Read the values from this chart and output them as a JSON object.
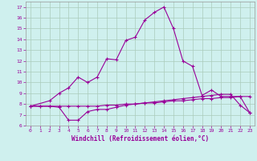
{
  "xlabel": "Windchill (Refroidissement éolien,°C)",
  "background_color": "#cff0ee",
  "line_color": "#990099",
  "grid_color": "#aaccbb",
  "xlim": [
    -0.5,
    23.5
  ],
  "ylim": [
    6,
    17.5
  ],
  "yticks": [
    6,
    7,
    8,
    9,
    10,
    11,
    12,
    13,
    14,
    15,
    16,
    17
  ],
  "xticks": [
    0,
    1,
    2,
    3,
    4,
    5,
    6,
    7,
    8,
    9,
    10,
    11,
    12,
    13,
    14,
    15,
    16,
    17,
    18,
    19,
    20,
    21,
    22,
    23
  ],
  "series1_x": [
    0,
    1,
    2,
    3,
    4,
    5,
    6,
    7,
    8,
    9,
    10,
    11,
    12,
    13,
    14,
    15,
    16,
    17,
    18,
    19,
    20,
    21,
    22,
    23
  ],
  "series1_y": [
    7.8,
    7.8,
    7.8,
    7.8,
    7.8,
    7.8,
    7.8,
    7.8,
    7.9,
    7.9,
    8.0,
    8.0,
    8.1,
    8.1,
    8.2,
    8.3,
    8.3,
    8.4,
    8.5,
    8.5,
    8.6,
    8.6,
    8.7,
    8.7
  ],
  "series2_x": [
    0,
    1,
    2,
    3,
    4,
    5,
    6,
    7,
    8,
    9,
    10,
    11,
    12,
    13,
    14,
    15,
    16,
    17,
    18,
    19,
    20,
    21,
    22,
    23
  ],
  "series2_y": [
    7.8,
    7.8,
    7.8,
    7.7,
    6.5,
    6.5,
    7.3,
    7.5,
    7.5,
    7.7,
    7.9,
    8.0,
    8.1,
    8.2,
    8.3,
    8.4,
    8.5,
    8.6,
    8.7,
    8.8,
    8.9,
    8.9,
    7.9,
    7.2
  ],
  "series3_x": [
    0,
    2,
    3,
    4,
    5,
    6,
    7,
    8,
    9,
    10,
    11,
    12,
    13,
    14,
    15,
    16,
    17,
    18,
    19,
    20,
    21,
    22,
    23
  ],
  "series3_y": [
    7.8,
    8.3,
    9.0,
    9.5,
    10.5,
    10.0,
    10.5,
    12.2,
    12.1,
    13.9,
    14.2,
    15.8,
    16.5,
    17.0,
    15.0,
    12.0,
    11.5,
    8.8,
    9.3,
    8.7,
    8.7,
    8.7,
    7.2
  ]
}
